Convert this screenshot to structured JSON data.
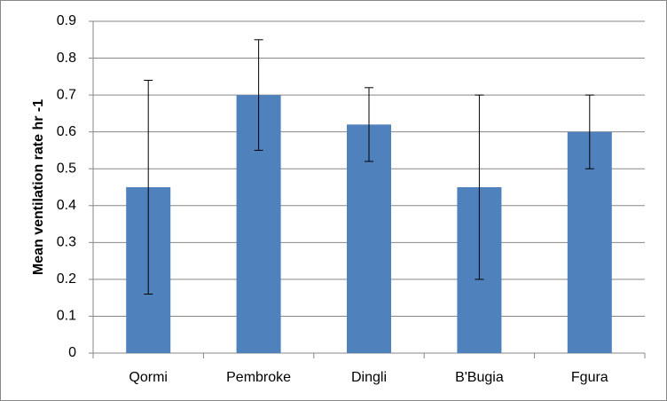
{
  "chart_data": {
    "type": "bar",
    "y_label": "Mean ventilation rate hr -1",
    "categories": [
      "Qormi",
      "Pembroke",
      "Dingli",
      "B'Bugia",
      "Fgura"
    ],
    "values": [
      0.45,
      0.7,
      0.62,
      0.45,
      0.6
    ],
    "errors": [
      0.29,
      0.15,
      0.1,
      0.25,
      0.1
    ],
    "color": "#4f81bd",
    "ylim": [
      0,
      0.9
    ],
    "yticks": [
      0,
      0.1,
      0.2,
      0.3,
      0.4,
      0.5,
      0.6,
      0.7,
      0.8,
      0.9
    ],
    "grid": true
  }
}
